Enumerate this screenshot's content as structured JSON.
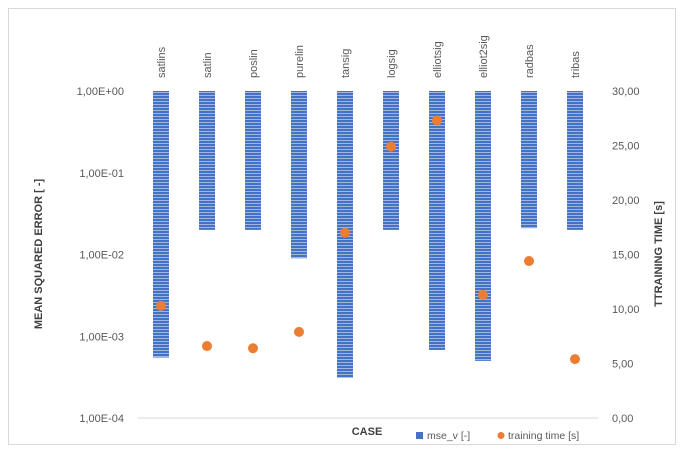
{
  "chart_data": {
    "type": "bar",
    "categories": [
      "satlins",
      "satlin",
      "poslin",
      "purelin",
      "tansig",
      "logsig",
      "elliotsig",
      "elliot2sig",
      "radbas",
      "tribas"
    ],
    "series": [
      {
        "name": "mse_v [-]",
        "type": "bar",
        "axis": "left",
        "color": "#4472C4",
        "values": [
          0.00055,
          0.02,
          0.02,
          0.009,
          0.00031,
          0.02,
          0.00068,
          0.0005,
          0.021,
          0.02
        ]
      },
      {
        "name": "training time [s]",
        "type": "scatter",
        "axis": "right",
        "color": "#ED7D31",
        "values": [
          10.3,
          6.6,
          6.4,
          7.9,
          17.0,
          24.9,
          27.3,
          11.3,
          14.4,
          5.4
        ]
      }
    ],
    "xlabel": "CASE",
    "ylabel": "MEAN SQUARED ERROR [ -]",
    "y2label": "TTRAINING TIME [s]",
    "yscale": "log",
    "ylim": [
      0.0001,
      1
    ],
    "y2lim": [
      0,
      30
    ],
    "yticks": [
      "1,00E+00",
      "1,00E-01",
      "1,00E-02",
      "1,00E-03",
      "1,00E-04"
    ],
    "y2ticks": [
      "30,00",
      "25,00",
      "20,00",
      "15,00",
      "10,00",
      "5,00",
      "0,00"
    ],
    "category_labels_position": "top",
    "bars_hang_from_top": true,
    "grid": false,
    "legend": "bottom-right"
  }
}
